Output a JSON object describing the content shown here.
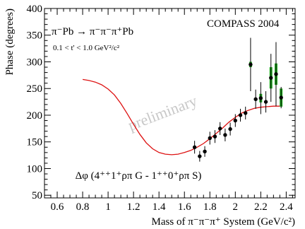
{
  "chart_data": {
    "type": "scatter",
    "title": "",
    "xlabel": "Mass of π⁻π⁻π⁺ System (GeV/c²)",
    "ylabel": "Phase (degrees)",
    "xlim": [
      0.5,
      2.47
    ],
    "ylim": [
      45,
      400
    ],
    "x_ticks": [
      0.6,
      0.8,
      1.0,
      1.2,
      1.4,
      1.6,
      1.8,
      2.0,
      2.2,
      2.4
    ],
    "x_tick_labels": [
      "0.6",
      "0.8",
      "1",
      "1.2",
      "1.4",
      "1.6",
      "1.8",
      "2",
      "2.2",
      "2.4"
    ],
    "y_ticks": [
      50,
      100,
      150,
      200,
      250,
      300,
      350,
      400
    ],
    "y_tick_labels": [
      "50",
      "100",
      "150",
      "200",
      "250",
      "300",
      "350",
      "400"
    ],
    "grid": false,
    "annotations": {
      "reaction": "π⁻Pb → π⁻π⁻π⁺Pb",
      "t_range": "0.1 < t' < 1.0 GeV²/c²",
      "experiment": "COMPASS 2004",
      "watermark": "preliminary",
      "label": "Δφ (4⁺⁺1⁺ρπ G - 1⁺⁺0⁺ρπ S)"
    },
    "series": [
      {
        "type": "scatter",
        "x": [
          1.68,
          1.72,
          1.76,
          1.8,
          1.84,
          1.88,
          1.92,
          1.96,
          2.0,
          2.04,
          2.08,
          2.12,
          2.16,
          2.2,
          2.24,
          2.28,
          2.32,
          2.36
        ],
        "y": [
          140,
          123,
          132,
          157,
          160,
          175,
          163,
          174,
          190,
          200,
          204,
          295,
          230,
          232,
          225,
          270,
          277,
          233
        ],
        "err_low": [
          12,
          10,
          10,
          12,
          12,
          12,
          12,
          12,
          12,
          12,
          12,
          50,
          18,
          30,
          20,
          45,
          60,
          20
        ],
        "err_high": [
          12,
          10,
          10,
          12,
          12,
          12,
          12,
          12,
          12,
          12,
          12,
          50,
          18,
          30,
          20,
          45,
          60,
          20
        ],
        "sys_err": [
          0,
          0,
          0,
          0,
          0,
          0,
          0,
          0,
          0,
          0,
          0,
          5,
          0,
          8,
          0,
          20,
          20,
          17
        ],
        "color": "#000000",
        "sys_color": "#22aa22"
      },
      {
        "type": "line",
        "x": [
          0.8,
          0.85,
          0.9,
          0.95,
          1.0,
          1.05,
          1.1,
          1.15,
          1.2,
          1.25,
          1.3,
          1.35,
          1.4,
          1.45,
          1.5,
          1.55,
          1.6,
          1.65,
          1.7,
          1.75,
          1.8,
          1.85,
          1.9,
          1.95,
          2.0,
          2.05,
          2.1,
          2.15,
          2.2,
          2.25,
          2.3,
          2.35
        ],
        "y": [
          267,
          265,
          262,
          257,
          249,
          238,
          222,
          203,
          183,
          164,
          148,
          137,
          130,
          127,
          126,
          127,
          130,
          134,
          140,
          147,
          156,
          166,
          176,
          187,
          196,
          204,
          209,
          213,
          215,
          216,
          217,
          217
        ],
        "color": "#dd1111"
      }
    ]
  }
}
